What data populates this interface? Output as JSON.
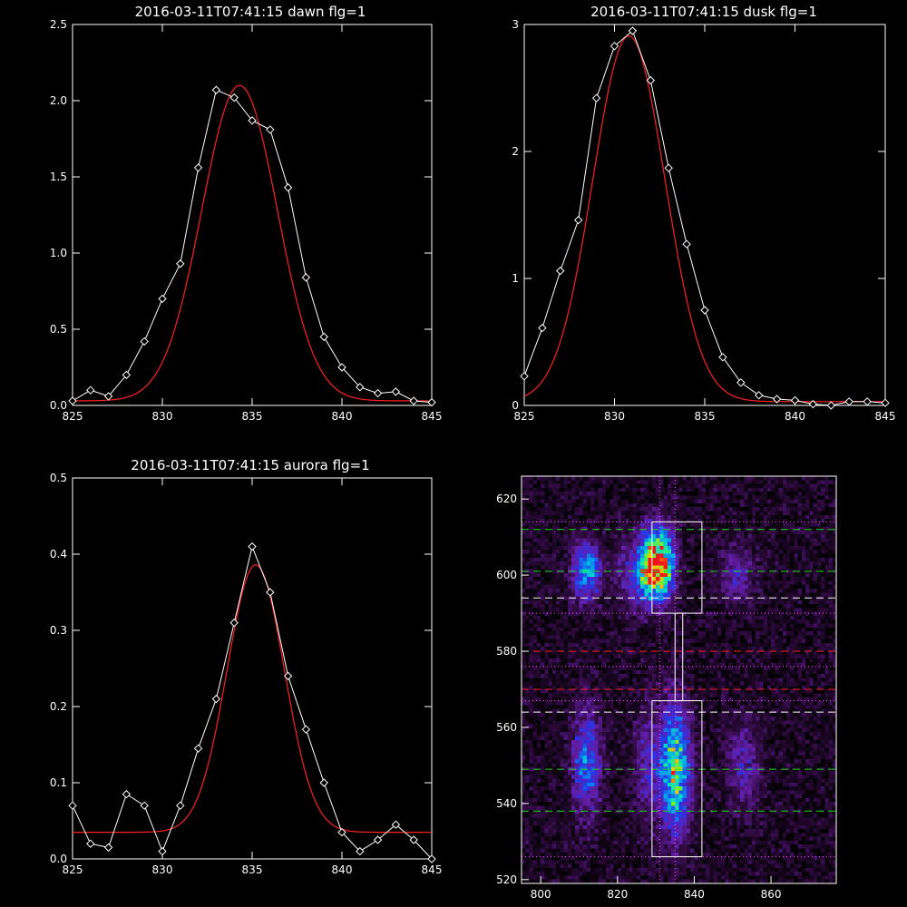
{
  "panels": [
    {
      "title": "2016-03-11T07:41:15 dawn flg=1",
      "xlim": [
        825,
        845
      ],
      "ylim": [
        0,
        2.5
      ],
      "xticks": [
        825,
        830,
        835,
        840,
        845
      ],
      "yticks": [
        0.0,
        0.5,
        1.0,
        1.5,
        2.0,
        2.5
      ],
      "ytick_labels": [
        "0.0",
        "0.5",
        "1.0",
        "1.5",
        "2.0",
        "2.5"
      ],
      "fit": {
        "amp": 2.07,
        "center": 834.3,
        "sigma": 2.1,
        "offset": 0.03
      },
      "data": {
        "x": [
          825,
          826,
          827,
          828,
          829,
          830,
          831,
          832,
          833,
          834,
          835,
          836,
          837,
          838,
          839,
          840,
          841,
          842,
          843,
          844,
          845
        ],
        "y": [
          0.03,
          0.1,
          0.06,
          0.2,
          0.42,
          0.7,
          0.93,
          1.56,
          2.07,
          2.02,
          1.87,
          1.81,
          1.43,
          0.84,
          0.45,
          0.25,
          0.12,
          0.08,
          0.09,
          0.03,
          0.02
        ]
      }
    },
    {
      "title": "2016-03-11T07:41:15 dusk flg=1",
      "xlim": [
        825,
        845
      ],
      "ylim": [
        0,
        3
      ],
      "xticks": [
        825,
        830,
        835,
        840,
        845
      ],
      "yticks": [
        0,
        1,
        2,
        3
      ],
      "ytick_labels": [
        "0",
        "1",
        "2",
        "3"
      ],
      "fit": {
        "amp": 2.88,
        "center": 830.8,
        "sigma": 2.0,
        "offset": 0.03
      },
      "data": {
        "x": [
          825,
          826,
          827,
          828,
          829,
          830,
          831,
          832,
          833,
          834,
          835,
          836,
          837,
          838,
          839,
          840,
          841,
          842,
          843,
          844,
          845
        ],
        "y": [
          0.23,
          0.61,
          1.06,
          1.46,
          2.42,
          2.83,
          2.95,
          2.56,
          1.87,
          1.27,
          0.75,
          0.38,
          0.18,
          0.08,
          0.05,
          0.04,
          0.01,
          0.0,
          0.03,
          0.03,
          0.02
        ]
      }
    },
    {
      "title": "2016-03-11T07:41:15 aurora flg=1",
      "xlim": [
        825,
        845
      ],
      "ylim": [
        0,
        0.5
      ],
      "xticks": [
        825,
        830,
        835,
        840,
        845
      ],
      "yticks": [
        0.0,
        0.1,
        0.2,
        0.3,
        0.4,
        0.5
      ],
      "ytick_labels": [
        "0.0",
        "0.1",
        "0.2",
        "0.3",
        "0.4",
        "0.5"
      ],
      "fit": {
        "amp": 0.351,
        "center": 835.2,
        "sigma": 1.6,
        "offset": 0.035
      },
      "data": {
        "x": [
          825,
          826,
          827,
          828,
          829,
          830,
          831,
          832,
          833,
          834,
          835,
          836,
          837,
          838,
          839,
          840,
          841,
          842,
          843,
          844,
          845
        ],
        "y": [
          0.07,
          0.02,
          0.015,
          0.085,
          0.07,
          0.01,
          0.07,
          0.145,
          0.21,
          0.31,
          0.41,
          0.35,
          0.24,
          0.17,
          0.1,
          0.035,
          0.01,
          0.025,
          0.045,
          0.025,
          0.0
        ]
      }
    }
  ],
  "image_panel": {
    "xlim": [
      795,
      877
    ],
    "ylim": [
      519,
      626
    ],
    "xticks": [
      800,
      820,
      840,
      860
    ],
    "yticks": [
      520,
      540,
      560,
      580,
      600,
      620
    ],
    "blobs": [
      {
        "x": 812,
        "y": 601,
        "sx": 2.5,
        "sy": 5,
        "a": 0.55
      },
      {
        "x": 831,
        "y": 603,
        "sx": 2.6,
        "sy": 6,
        "a": 0.95
      },
      {
        "x": 824,
        "y": 600,
        "sx": 3,
        "sy": 6,
        "a": 0.25
      },
      {
        "x": 828,
        "y": 602,
        "sx": 2,
        "sy": 6,
        "a": 0.45
      },
      {
        "x": 851,
        "y": 600,
        "sx": 3,
        "sy": 5,
        "a": 0.22
      },
      {
        "x": 812,
        "y": 551,
        "sx": 2.5,
        "sy": 9,
        "a": 0.42
      },
      {
        "x": 835,
        "y": 549,
        "sx": 2.6,
        "sy": 11,
        "a": 0.75
      },
      {
        "x": 828,
        "y": 550,
        "sx": 2.5,
        "sy": 10,
        "a": 0.22
      },
      {
        "x": 853,
        "y": 550,
        "sx": 3,
        "sy": 8,
        "a": 0.2
      }
    ],
    "boxes": [
      {
        "x1": 829,
        "x2": 842,
        "y1": 590,
        "y2": 614
      },
      {
        "x1": 829,
        "x2": 842,
        "y1": 526,
        "y2": 567
      },
      {
        "x1": 835,
        "x2": 837,
        "y1": 567,
        "y2": 590
      }
    ],
    "green_lines": [
      612,
      601,
      549,
      538
    ],
    "white_dashed_lines": [
      594,
      564
    ],
    "red_dashed_lines": [
      580,
      570
    ],
    "dotted_lines": [
      614,
      590,
      576,
      567,
      526
    ],
    "vertical_dotted_lines": [
      831,
      835
    ]
  }
}
